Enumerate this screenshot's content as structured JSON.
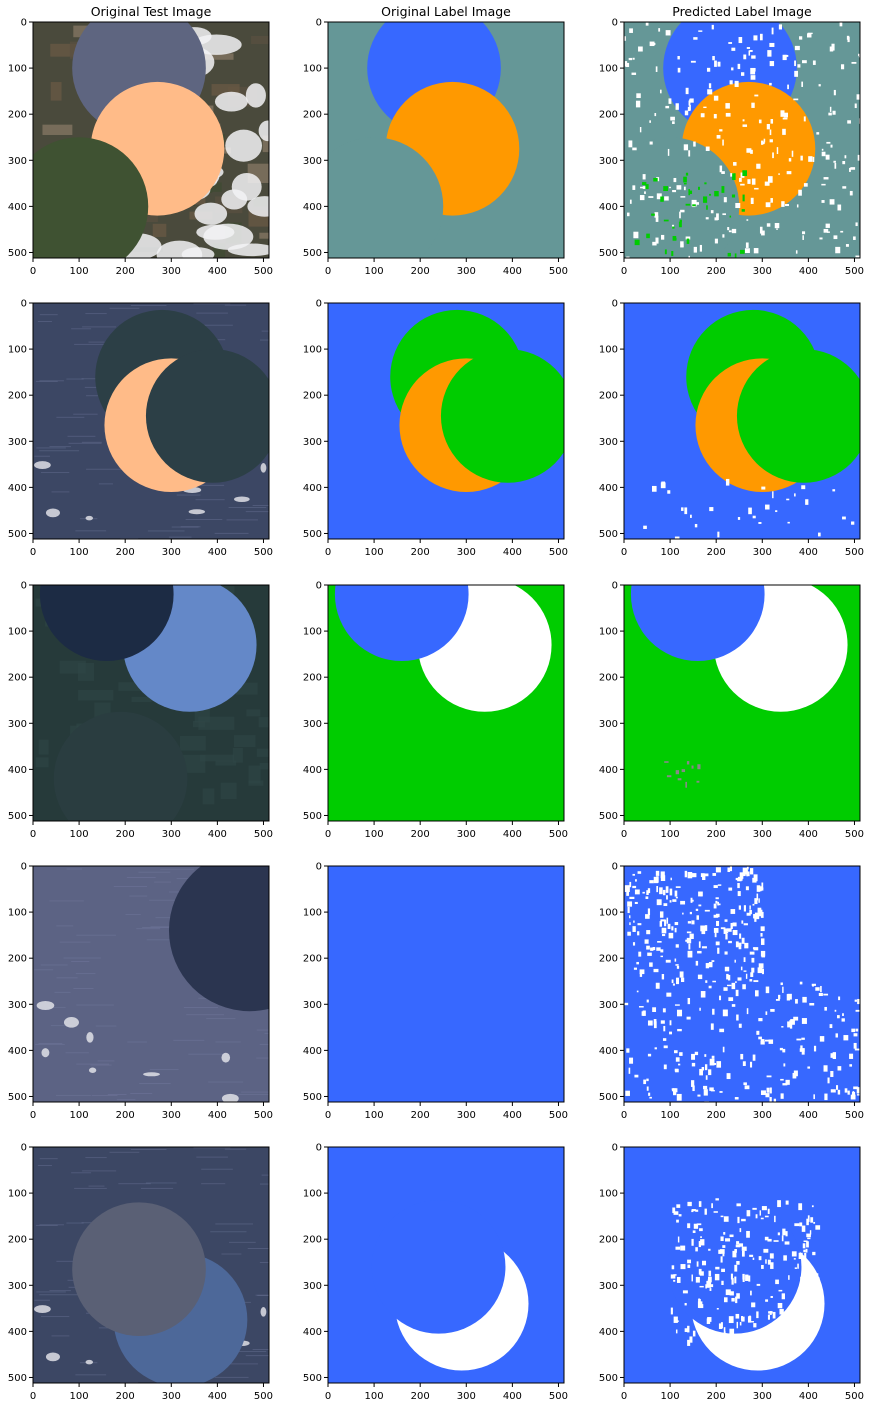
{
  "figure": {
    "column_titles": [
      "Original Test Image",
      "Original Label Image",
      "Predicted Label Image"
    ],
    "x_ticks": [
      "0",
      "100",
      "200",
      "300",
      "400",
      "500"
    ],
    "y_ticks": [
      "0",
      "100",
      "200",
      "300",
      "400",
      "500"
    ],
    "image_extent": [
      512,
      512
    ],
    "colors": {
      "water": "#3768ff",
      "forest": "#00cc00",
      "cloud": "#ffffff",
      "background": "#659797",
      "orange": "#ff9900",
      "peach": "#ffbb88",
      "gray": "#888888"
    }
  },
  "panels": [
    {
      "row": 0,
      "test": {
        "bg": "landscape",
        "circles": [
          {
            "cx": 230,
            "cy": 100,
            "r": 145,
            "fill": "#5e6580"
          },
          {
            "cx": 270,
            "cy": 275,
            "r": 145,
            "fill": "#ffbb88"
          },
          {
            "cx": 100,
            "cy": 400,
            "r": 150,
            "fill": "#3f5232"
          }
        ]
      },
      "label": {
        "bg": "#659797",
        "circles": [
          {
            "cx": 230,
            "cy": 100,
            "r": 145,
            "fill": "#3768ff"
          },
          {
            "cx": 270,
            "cy": 275,
            "r": 145,
            "fill": "#ff9900"
          },
          {
            "cx": 100,
            "cy": 400,
            "r": 150,
            "fill": "#659797"
          }
        ]
      },
      "pred": {
        "bg": "#659797",
        "circles": [
          {
            "cx": 230,
            "cy": 100,
            "r": 145,
            "fill": "#3768ff"
          },
          {
            "cx": 270,
            "cy": 275,
            "r": 145,
            "fill": "#ff9900"
          },
          {
            "cx": 100,
            "cy": 400,
            "r": 150,
            "fill": "#659797"
          }
        ],
        "noise": {
          "color": "#ffffff",
          "seed": 11,
          "count": 260,
          "region": [
            [
              0,
              0,
              512,
              512
            ]
          ]
        },
        "noise2": {
          "color": "#00cc00",
          "seed": 5,
          "count": 40,
          "region": [
            [
              20,
              320,
              260,
              512
            ]
          ]
        }
      }
    },
    {
      "row": 1,
      "test": {
        "bg": "water",
        "circles": [
          {
            "cx": 280,
            "cy": 160,
            "r": 145,
            "fill": "#2c3f46"
          },
          {
            "cx": 300,
            "cy": 265,
            "r": 145,
            "fill": "#ffbb88"
          },
          {
            "cx": 390,
            "cy": 245,
            "r": 145,
            "fill": "#2c3f46"
          }
        ]
      },
      "label": {
        "bg": "#3768ff",
        "circles": [
          {
            "cx": 280,
            "cy": 160,
            "r": 145,
            "fill": "#00cc00"
          },
          {
            "cx": 300,
            "cy": 265,
            "r": 145,
            "fill": "#ff9900"
          },
          {
            "cx": 390,
            "cy": 245,
            "r": 145,
            "fill": "#00cc00"
          }
        ]
      },
      "pred": {
        "bg": "#3768ff",
        "circles": [
          {
            "cx": 280,
            "cy": 160,
            "r": 145,
            "fill": "#00cc00"
          },
          {
            "cx": 300,
            "cy": 265,
            "r": 145,
            "fill": "#ff9900"
          },
          {
            "cx": 390,
            "cy": 245,
            "r": 145,
            "fill": "#00cc00"
          }
        ],
        "noise": {
          "color": "#ffffff",
          "seed": 21,
          "count": 30,
          "region": [
            [
              0,
              380,
              512,
              512
            ]
          ]
        }
      }
    },
    {
      "row": 2,
      "test": {
        "bg": "forest",
        "circles": [
          {
            "cx": 340,
            "cy": 130,
            "r": 145,
            "fill": "#6488c8"
          },
          {
            "cx": 160,
            "cy": 20,
            "r": 145,
            "fill": "#1c2b44"
          },
          {
            "cx": 190,
            "cy": 420,
            "r": 145,
            "fill": "#2a3d40"
          }
        ]
      },
      "label": {
        "bg": "#00cc00",
        "circles": [
          {
            "cx": 340,
            "cy": 130,
            "r": 145,
            "fill": "#ffffff"
          },
          {
            "cx": 160,
            "cy": 20,
            "r": 145,
            "fill": "#3768ff"
          }
        ]
      },
      "pred": {
        "bg": "#00cc00",
        "circles": [
          {
            "cx": 340,
            "cy": 130,
            "r": 145,
            "fill": "#ffffff"
          },
          {
            "cx": 160,
            "cy": 20,
            "r": 145,
            "fill": "#3768ff"
          }
        ],
        "noise": {
          "color": "#888888",
          "seed": 31,
          "count": 10,
          "region": [
            [
              80,
              380,
              160,
              430
            ]
          ]
        }
      }
    },
    {
      "row": 3,
      "test": {
        "bg": "water2",
        "circles": [
          {
            "cx": 470,
            "cy": 140,
            "r": 175,
            "fill": "#2b3550"
          }
        ]
      },
      "label": {
        "bg": "#3768ff",
        "circles": []
      },
      "pred": {
        "bg": "#3768ff",
        "circles": [],
        "noise": {
          "color": "#ffffff",
          "seed": 41,
          "count": 420,
          "region": [
            [
              0,
              0,
              300,
              250
            ],
            [
              0,
              250,
              512,
              512
            ]
          ]
        }
      }
    },
    {
      "row": 4,
      "test": {
        "bg": "water",
        "circles": [
          {
            "cx": 320,
            "cy": 375,
            "r": 145,
            "fill": "#4d6899"
          },
          {
            "cx": 230,
            "cy": 265,
            "r": 145,
            "fill": "#5a6075"
          }
        ]
      },
      "label": {
        "bg": "#3768ff",
        "circles": [
          {
            "cx": 290,
            "cy": 340,
            "r": 145,
            "fill": "#ffffff"
          },
          {
            "cx": 240,
            "cy": 260,
            "r": 145,
            "fill": "#3768ff"
          }
        ]
      },
      "pred": {
        "bg": "#3768ff",
        "circles": [
          {
            "cx": 290,
            "cy": 340,
            "r": 145,
            "fill": "#ffffff"
          },
          {
            "cx": 240,
            "cy": 260,
            "r": 145,
            "fill": "#3768ff"
          }
        ],
        "noise": {
          "color": "#ffffff",
          "seed": 51,
          "count": 230,
          "region": [
            [
              100,
              110,
              420,
              420
            ]
          ]
        }
      }
    }
  ]
}
